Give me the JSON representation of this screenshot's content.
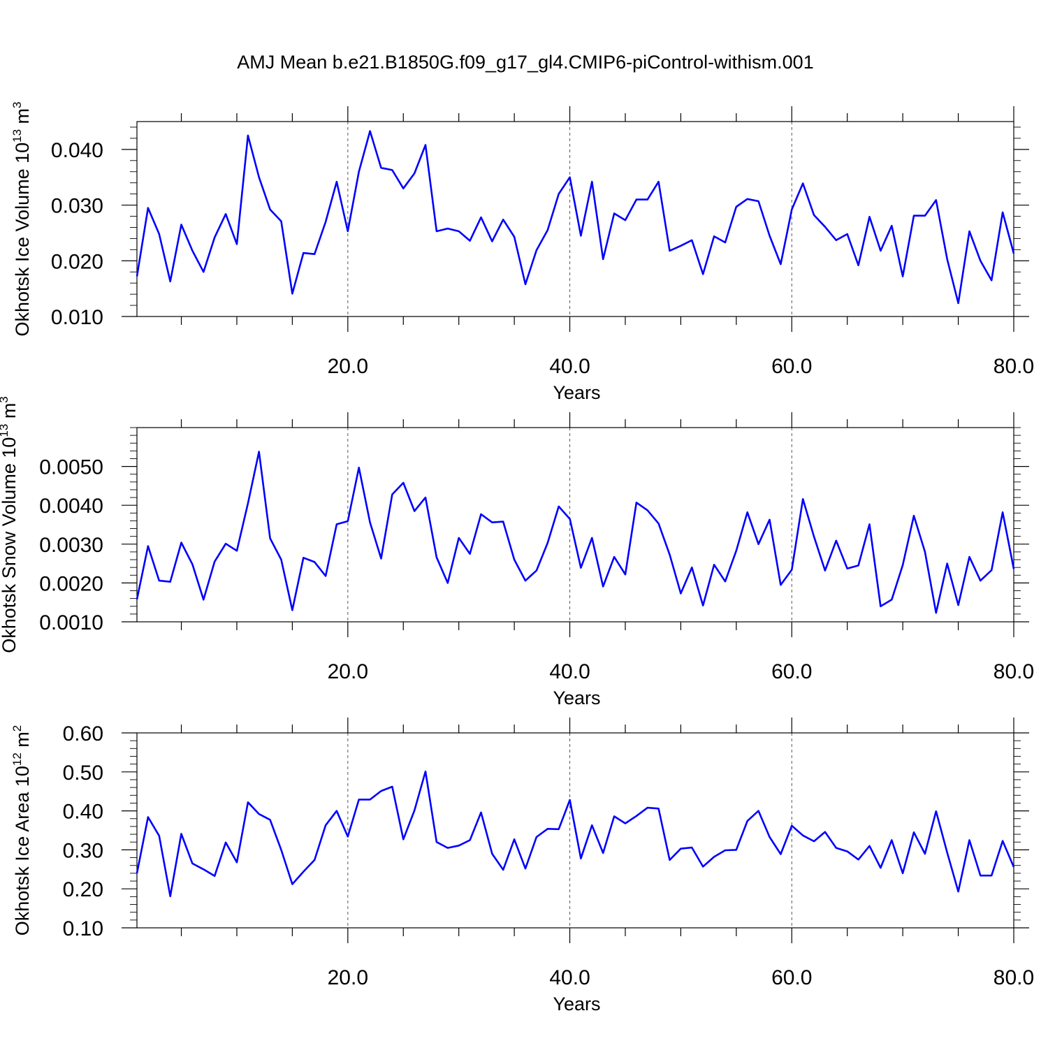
{
  "title": "AMJ Mean b.e21.B1850G.f09_g17_gl4.CMIP6-piControl-withism.001",
  "colors": {
    "series": "#0000ff",
    "axis": "#000000",
    "grid": "#555555"
  },
  "chart_data": [
    {
      "type": "line",
      "ylabel": {
        "main": "Okhotsk Ice Volume 10",
        "sup": "13",
        "tail": " m",
        "sup2": "3"
      },
      "xlabel": "Years",
      "xlim": [
        1,
        80
      ],
      "ylim": [
        0.01,
        0.045
      ],
      "xticks": [
        20,
        40,
        60,
        80
      ],
      "xtick_labels": [
        "20.0",
        "40.0",
        "60.0",
        "80.0"
      ],
      "yticks": [
        0.01,
        0.02,
        0.03,
        0.04
      ],
      "ytick_labels": [
        "0.010",
        "0.020",
        "0.030",
        "0.040"
      ],
      "grid_x": [
        20,
        40,
        60
      ],
      "x_start": 1,
      "values": [
        0.0172,
        0.0295,
        0.0248,
        0.0163,
        0.0265,
        0.0218,
        0.018,
        0.0242,
        0.0284,
        0.023,
        0.0425,
        0.035,
        0.0292,
        0.0271,
        0.0141,
        0.0214,
        0.0212,
        0.027,
        0.0342,
        0.0253,
        0.036,
        0.0433,
        0.0367,
        0.0363,
        0.033,
        0.0357,
        0.0408,
        0.0253,
        0.0258,
        0.0253,
        0.0236,
        0.0278,
        0.0235,
        0.0274,
        0.0243,
        0.0158,
        0.0219,
        0.0255,
        0.032,
        0.035,
        0.0245,
        0.0342,
        0.0203,
        0.0285,
        0.0273,
        0.031,
        0.031,
        0.0342,
        0.0218,
        0.0227,
        0.0237,
        0.0176,
        0.0244,
        0.0233,
        0.0297,
        0.0311,
        0.0307,
        0.0245,
        0.0194,
        0.0292,
        0.0339,
        0.0282,
        0.0261,
        0.0237,
        0.0248,
        0.0192,
        0.0279,
        0.0218,
        0.0263,
        0.0172,
        0.0281,
        0.0281,
        0.0309,
        0.0203,
        0.0124,
        0.0253,
        0.02,
        0.0165,
        0.0287,
        0.0213
      ]
    },
    {
      "type": "line",
      "ylabel": {
        "main": "Okhotsk Snow Volume 10",
        "sup": "13",
        "tail": " m",
        "sup2": "3"
      },
      "xlabel": "Years",
      "xlim": [
        1,
        80
      ],
      "ylim": [
        0.001,
        0.006
      ],
      "xticks": [
        20,
        40,
        60,
        80
      ],
      "xtick_labels": [
        "20.0",
        "40.0",
        "60.0",
        "80.0"
      ],
      "yticks": [
        0.001,
        0.002,
        0.003,
        0.004,
        0.005
      ],
      "ytick_labels": [
        "0.0010",
        "0.0020",
        "0.0030",
        "0.0040",
        "0.0050"
      ],
      "grid_x": [
        20,
        40,
        60
      ],
      "x_start": 1,
      "values": [
        0.00158,
        0.00295,
        0.00206,
        0.00203,
        0.00304,
        0.00248,
        0.00157,
        0.00255,
        0.00301,
        0.00283,
        0.00405,
        0.00538,
        0.00315,
        0.0026,
        0.0013,
        0.00265,
        0.00254,
        0.00218,
        0.00351,
        0.00359,
        0.00497,
        0.00356,
        0.00263,
        0.00428,
        0.00458,
        0.00385,
        0.0042,
        0.00266,
        0.002,
        0.00316,
        0.00275,
        0.00377,
        0.00356,
        0.00358,
        0.0026,
        0.00206,
        0.00232,
        0.00303,
        0.00397,
        0.00365,
        0.00239,
        0.00316,
        0.00191,
        0.00267,
        0.00222,
        0.00407,
        0.00387,
        0.00353,
        0.00273,
        0.00173,
        0.0024,
        0.00142,
        0.00247,
        0.00204,
        0.00283,
        0.00382,
        0.003,
        0.00363,
        0.00195,
        0.00234,
        0.00416,
        0.00319,
        0.00232,
        0.00309,
        0.00237,
        0.00245,
        0.00351,
        0.0014,
        0.00157,
        0.00246,
        0.00373,
        0.0028,
        0.00123,
        0.0025,
        0.00143,
        0.00267,
        0.00206,
        0.00233,
        0.00382,
        0.00236
      ]
    },
    {
      "type": "line",
      "ylabel": {
        "main": "Okhotsk Ice Area 10",
        "sup": "12",
        "tail": " m",
        "sup2": "2"
      },
      "xlabel": "Years",
      "xlim": [
        1,
        80
      ],
      "ylim": [
        0.1,
        0.6
      ],
      "xticks": [
        20,
        40,
        60,
        80
      ],
      "xtick_labels": [
        "20.0",
        "40.0",
        "60.0",
        "80.0"
      ],
      "yticks": [
        0.1,
        0.2,
        0.3,
        0.4,
        0.5,
        0.6
      ],
      "ytick_labels": [
        "0.10",
        "0.20",
        "0.30",
        "0.40",
        "0.50",
        "0.60"
      ],
      "grid_x": [
        20,
        40,
        60
      ],
      "x_start": 1,
      "values": [
        0.24,
        0.384,
        0.336,
        0.181,
        0.341,
        0.265,
        0.25,
        0.233,
        0.319,
        0.268,
        0.422,
        0.392,
        0.377,
        0.3,
        0.212,
        0.244,
        0.274,
        0.363,
        0.4,
        0.334,
        0.429,
        0.429,
        0.451,
        0.462,
        0.327,
        0.401,
        0.501,
        0.32,
        0.305,
        0.311,
        0.325,
        0.396,
        0.29,
        0.249,
        0.327,
        0.252,
        0.333,
        0.354,
        0.353,
        0.428,
        0.278,
        0.363,
        0.292,
        0.386,
        0.368,
        0.387,
        0.408,
        0.406,
        0.274,
        0.303,
        0.306,
        0.257,
        0.282,
        0.299,
        0.3,
        0.374,
        0.4,
        0.333,
        0.289,
        0.362,
        0.337,
        0.322,
        0.346,
        0.305,
        0.296,
        0.275,
        0.31,
        0.254,
        0.325,
        0.24,
        0.345,
        0.29,
        0.399,
        0.293,
        0.193,
        0.325,
        0.234,
        0.234,
        0.323,
        0.256
      ]
    }
  ]
}
